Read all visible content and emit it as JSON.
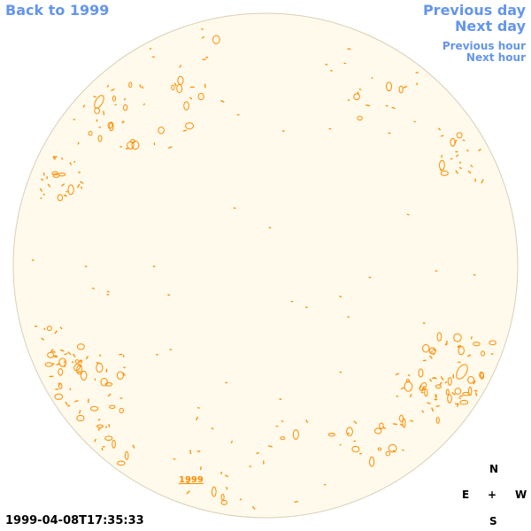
{
  "nav": {
    "back": "Back to 1999",
    "previous_day": "Previous day",
    "next_day": "Next day",
    "previous_hour": "Previous hour",
    "next_hour": "Next hour"
  },
  "timestamp": "1999-04-08T17:35:33",
  "year_label": "1999",
  "compass": {
    "n": "N",
    "e": "E",
    "center": "+",
    "w": "W",
    "s": "S"
  },
  "colors": {
    "link": "#6495ed",
    "disk_fill": "#fffaeb",
    "disk_stroke": "#d8cfb8",
    "feature": "#ff8c00"
  }
}
